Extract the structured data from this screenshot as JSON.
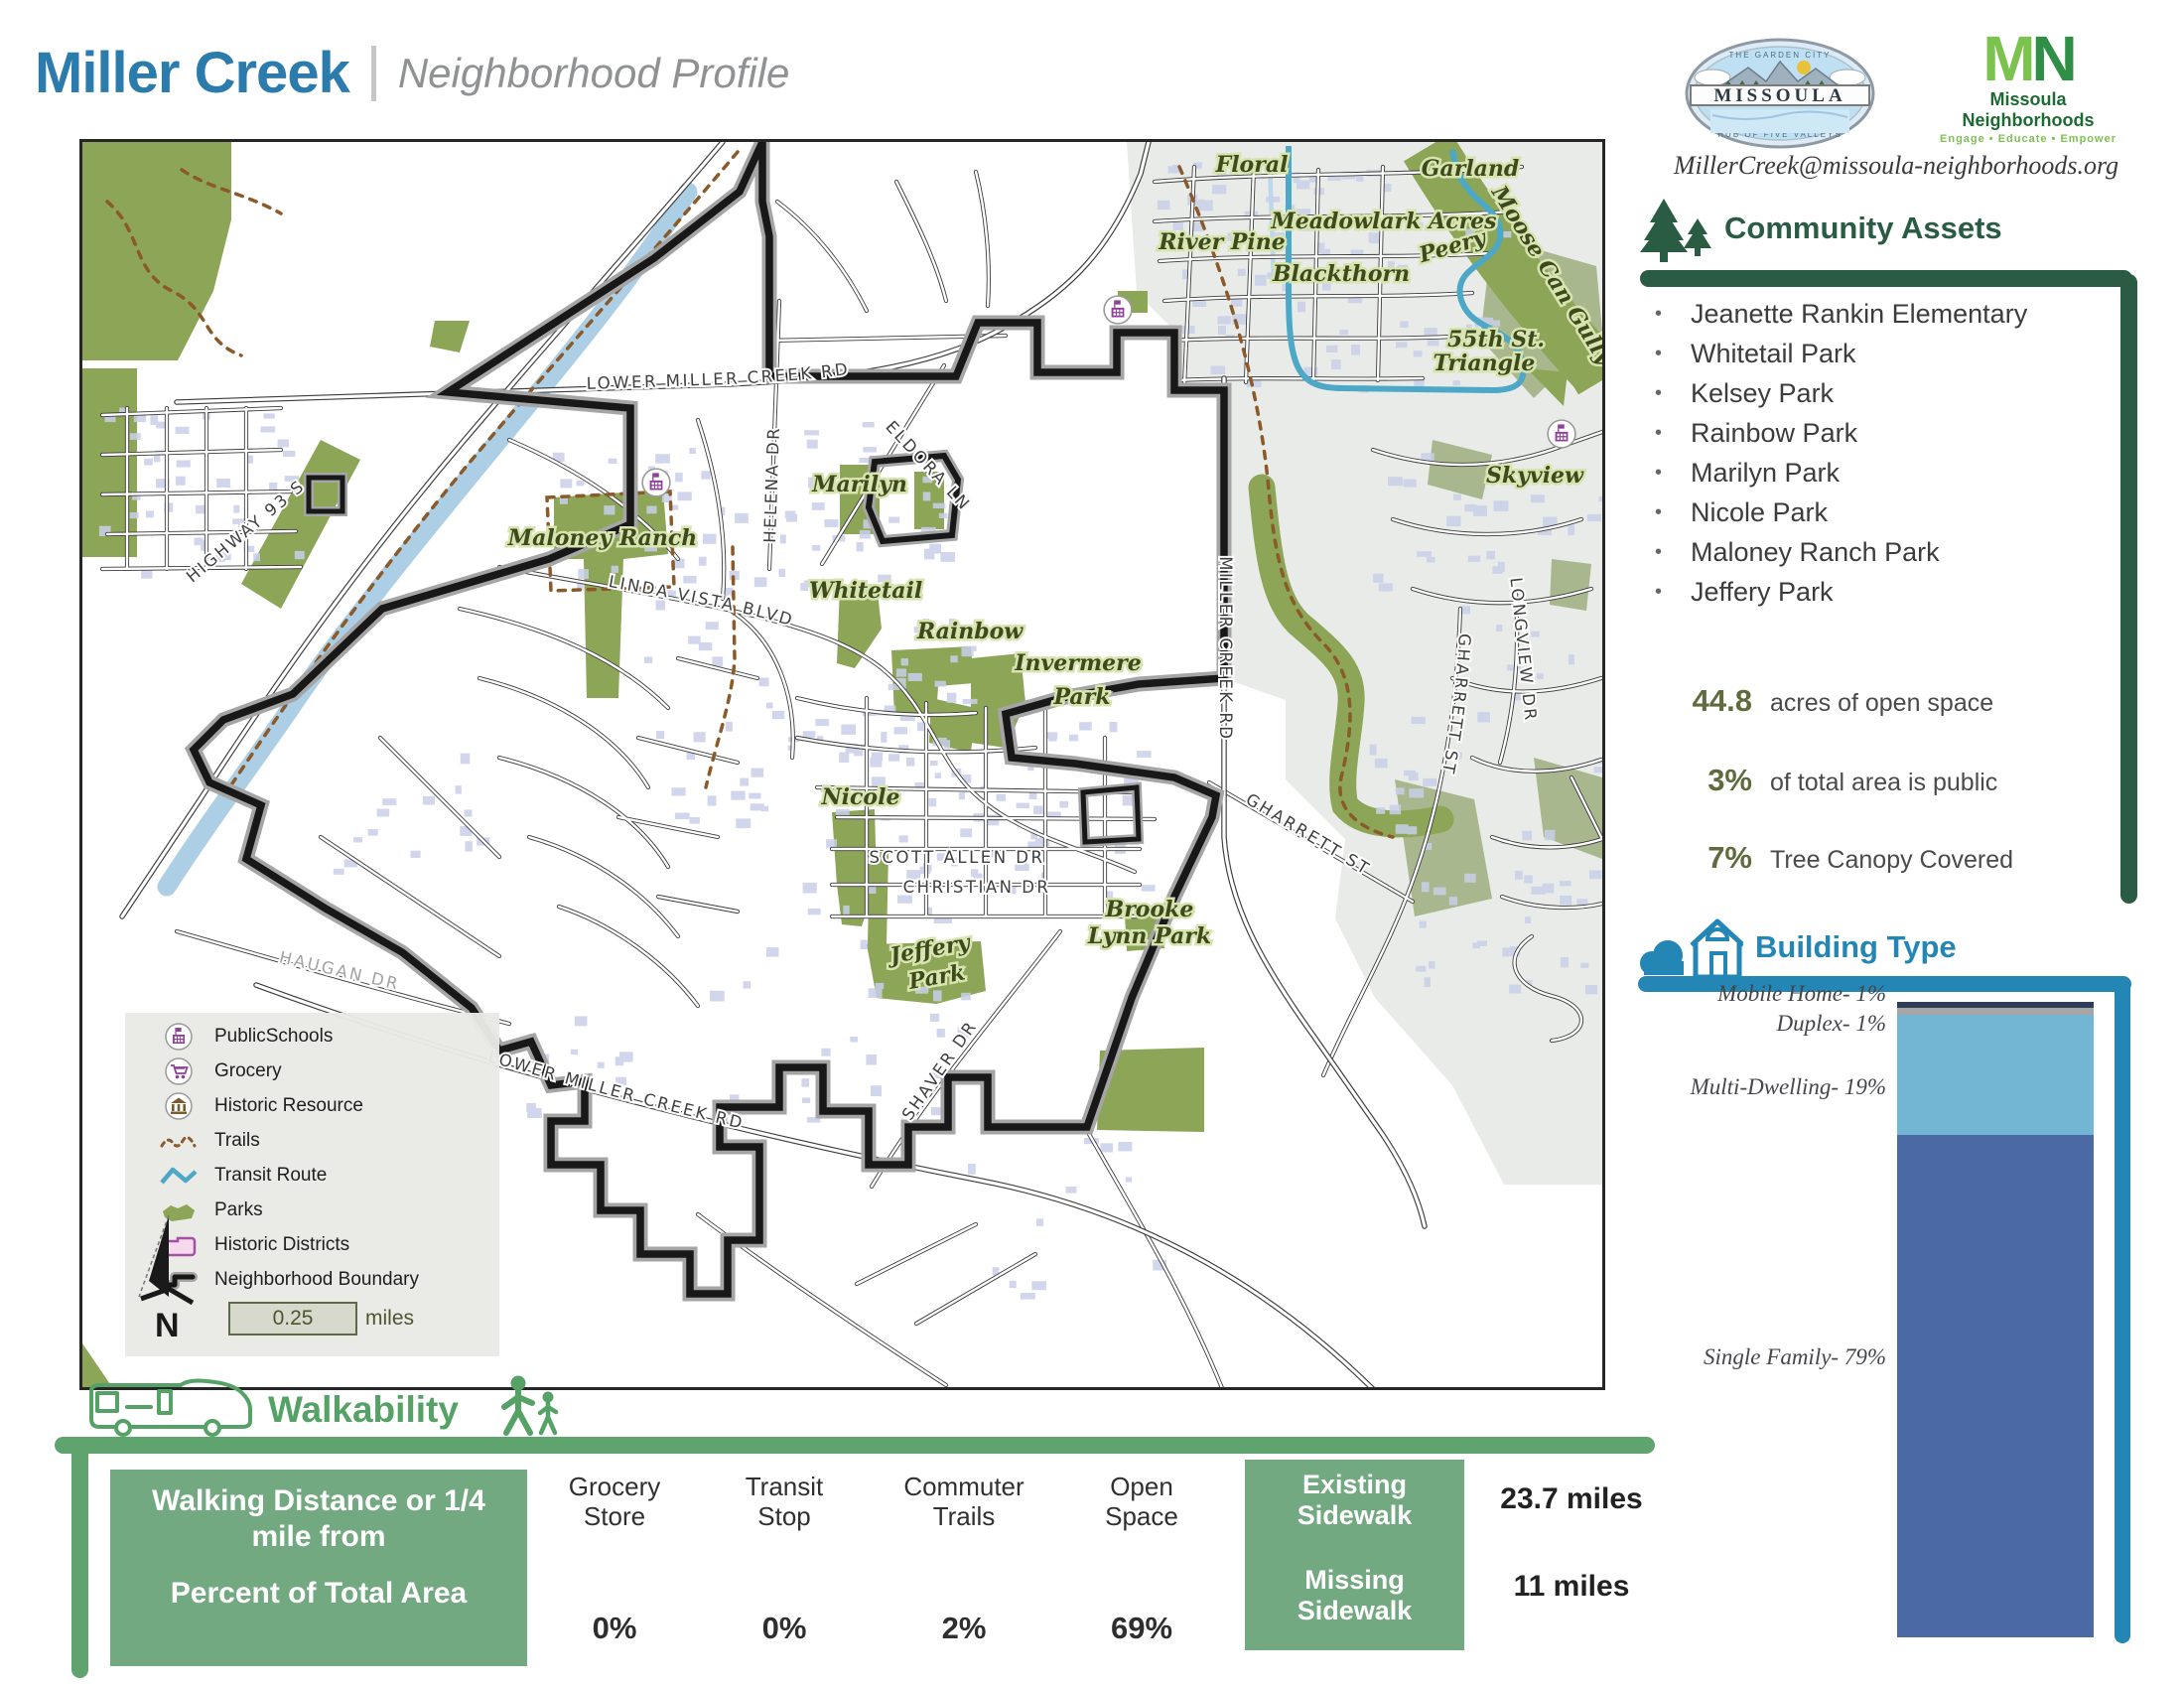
{
  "colors": {
    "title_blue": "#2b7cad",
    "section_green": "#2a5c44",
    "building_blue": "#2386b5",
    "walk_green": "#5fa36e",
    "stat_olive": "#5f6b3c",
    "park_green": "#8ca556",
    "boundary_black": "#181818",
    "transit_blue": "#4da7c7",
    "river_blue": "#accfe5"
  },
  "header": {
    "title": "Miller Creek",
    "subtitle": "Neighborhood Profile",
    "email": "MillerCreek@missoula-neighborhoods.org"
  },
  "logos": {
    "seal_name": "MISSOULA",
    "seal_top": "THE GARDEN CITY",
    "seal_bottom": "HUB OF FIVE VALLEYS",
    "mn_m": "M",
    "mn_n": "N",
    "mn_name": "Missoula Neighborhoods",
    "mn_tagline": "Engage • Educate • Empower"
  },
  "community_assets": {
    "heading": "Community Assets",
    "items": [
      "Jeanette Rankin Elementary",
      "Whitetail Park",
      "Kelsey Park",
      "Rainbow Park",
      "Marilyn Park",
      "Nicole Park",
      "Maloney Ranch Park",
      "Jeffery Park"
    ],
    "stats": [
      {
        "value": "44.8",
        "label": "acres of open space"
      },
      {
        "value": "3%",
        "label": "of total area is public"
      },
      {
        "value": "7%",
        "label": "Tree Canopy Covered"
      }
    ]
  },
  "building_type": {
    "heading": "Building Type",
    "chart_data": {
      "type": "stacked-bar",
      "title": "Building Type",
      "unit": "percent of buildings",
      "legend_position": "left",
      "segments": [
        {
          "label": "Mobile Home",
          "pct": 1,
          "color": "#2e3d59"
        },
        {
          "label": "Duplex",
          "pct": 1,
          "color": "#a6a6a6"
        },
        {
          "label": "Multi-Dwelling",
          "pct": 19,
          "color": "#72b6d4"
        },
        {
          "label": "Single Family",
          "pct": 79,
          "color": "#4b69a5"
        }
      ]
    }
  },
  "walkability": {
    "heading": "Walkability",
    "table_header": {
      "line1": "Walking Distance or 1/4 mile from",
      "line2": "Percent of Total Area"
    },
    "columns": [
      {
        "label": "Grocery Store",
        "value": "0%"
      },
      {
        "label": "Transit Stop",
        "value": "0%"
      },
      {
        "label": "Commuter Trails",
        "value": "2%"
      },
      {
        "label": "Open Space",
        "value": "69%"
      }
    ],
    "sidewalks": [
      {
        "label": "Existing Sidewalk",
        "value": "23.7 miles"
      },
      {
        "label": "Missing Sidewalk",
        "value": "11 miles"
      }
    ]
  },
  "map": {
    "legend": {
      "items": [
        {
          "icon": "school-icon",
          "label": "PublicSchools"
        },
        {
          "icon": "grocery-icon",
          "label": "Grocery"
        },
        {
          "icon": "historic-icon",
          "label": "Historic Resource"
        },
        {
          "icon": "trails-icon",
          "label": "Trails"
        },
        {
          "icon": "transit-icon",
          "label": "Transit Route"
        },
        {
          "icon": "parks-icon",
          "label": "Parks"
        },
        {
          "icon": "districts-icon",
          "label": "Historic Districts"
        },
        {
          "icon": "boundary-icon",
          "label": "Neighborhood Boundary"
        }
      ],
      "scale_value": "0.25",
      "scale_unit": "miles",
      "north": "N"
    },
    "labels": {
      "lower_miller_creek_rd": "LOWER MILLER CREEK RD",
      "lower_miller_creek_rd_2": "LOWER MILLER CREEK RD",
      "highway_93_s": "HIGHWAY 93 S",
      "helena_dr": "HELENA DR",
      "eldora_ln": "ELDORA LN",
      "linda_vista_blvd": "LINDA VISTA BLVD",
      "scott_allen_dr": "SCOTT ALLEN DR",
      "christian_dr": "CHRISTIAN DR",
      "shaver_dr": "SHAVER DR",
      "miller_creek_rd": "MILLER CREEK RD",
      "gharrett_st": "GHARRETT ST",
      "gharrett_st_2": "GHARRETT ST",
      "longview_dr": "LONGVIEW DR",
      "haugan_dr": "HAUGAN DR",
      "floral": "Floral",
      "garland": "Garland",
      "meadowlark_acres": "Meadowlark Acres",
      "river_pine": "River Pine",
      "peery": "Peery",
      "blackthorn": "Blackthorn",
      "moose_can_gully": "Moose Can Gully",
      "st55_line1": "55th St.",
      "st55_line2": "Triangle",
      "skyview": "Skyview",
      "marilyn": "Marilyn",
      "maloney_ranch": "Maloney Ranch",
      "whitetail": "Whitetail",
      "rainbow": "Rainbow",
      "nicole": "Nicole",
      "invermere_line1": "Invermere",
      "invermere_line2": "Park",
      "jeffery_line1": "Jeffery",
      "jeffery_line2": "Park",
      "brooke_line1": "Brooke",
      "brooke_line2": "Lynn Park"
    }
  }
}
